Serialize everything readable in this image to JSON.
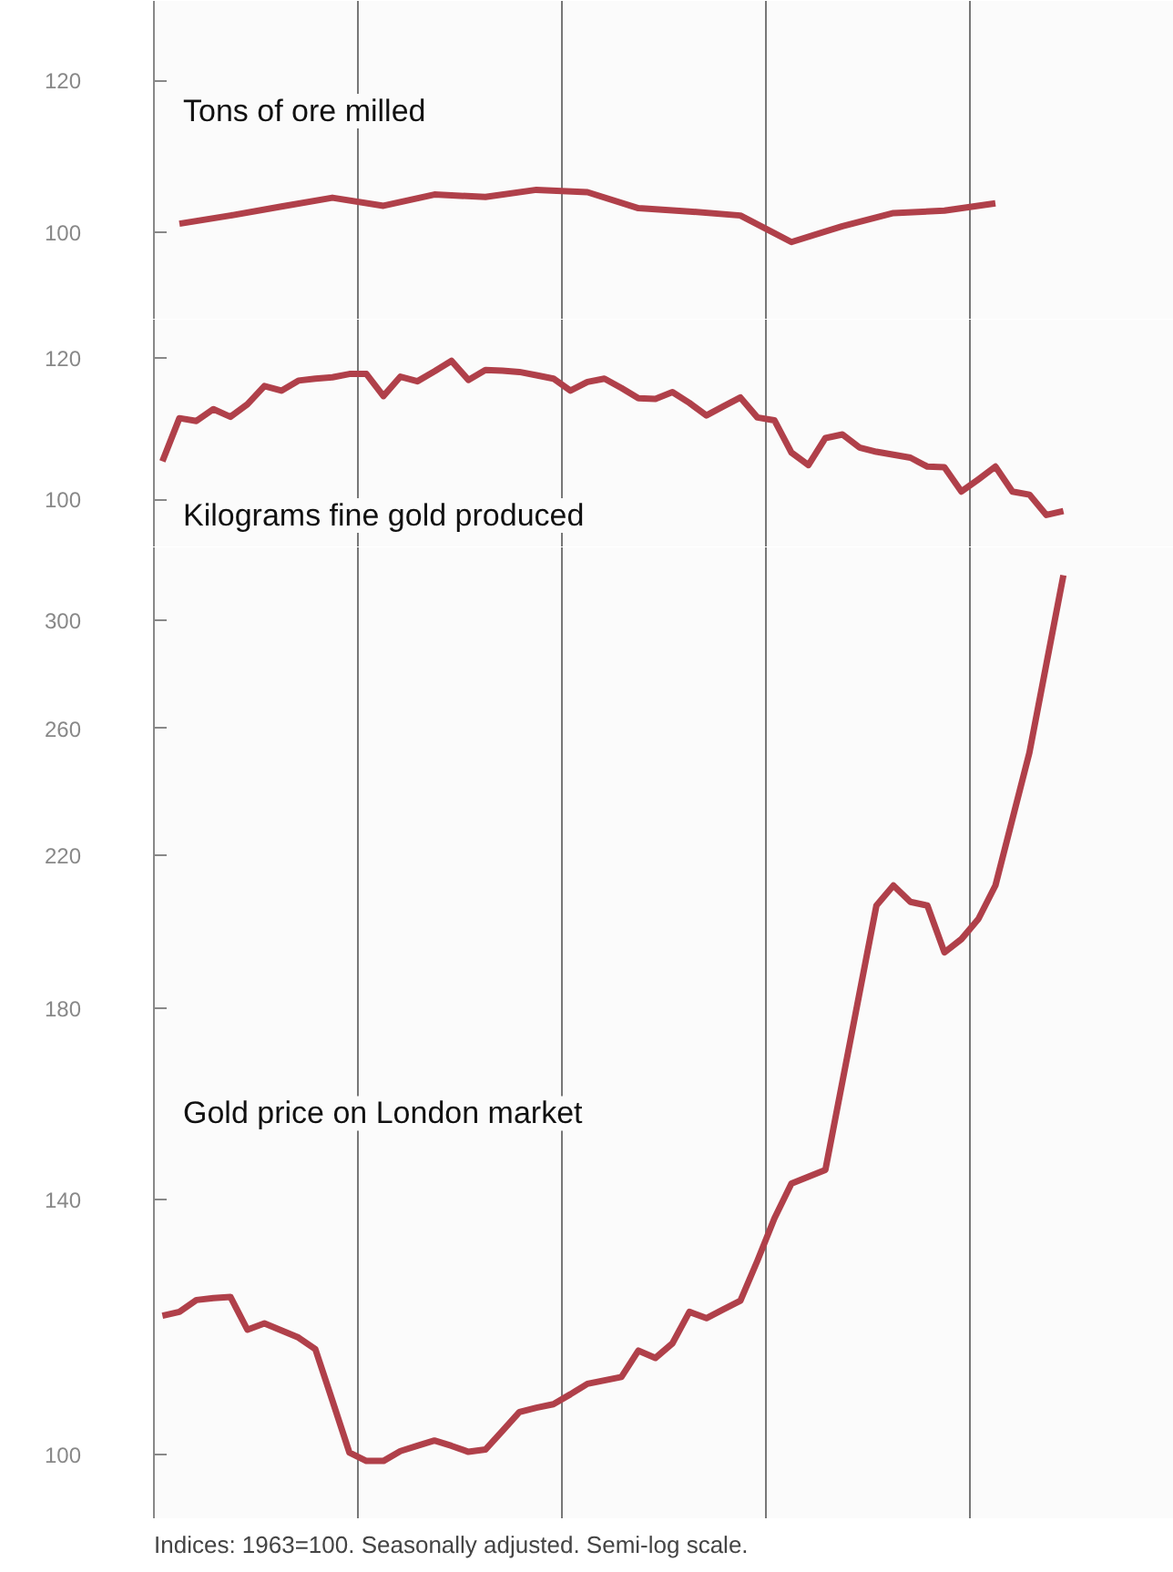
{
  "chart_data": [
    {
      "type": "line",
      "log": true,
      "grid": "x",
      "tick_labels": "y",
      "ylim": [
        90,
        132
      ],
      "yticks": [
        100,
        120
      ],
      "categories": [
        null,
        null,
        null,
        null,
        null,
        null,
        null,
        null,
        null,
        null,
        null,
        null,
        null,
        null,
        null,
        null,
        null,
        null,
        null,
        null
      ],
      "series": [
        {
          "name": "Tons of ore milled",
          "color": "#b0404a",
          "values": [
            101.0,
            102.0,
            103.1,
            104.2,
            103.2,
            104.6,
            104.3,
            105.2,
            104.9,
            102.9,
            102.5,
            102.0,
            98.8,
            100.7,
            102.3,
            102.6,
            103.5,
            null,
            null,
            null
          ]
        }
      ]
    },
    {
      "type": "line",
      "log": true,
      "grid": "x",
      "tick_labels": "y",
      "ylim": [
        94,
        126
      ],
      "yticks": [
        100,
        120
      ],
      "categories": [
        null,
        null,
        null,
        null,
        null,
        null,
        null,
        null,
        null,
        null,
        null,
        null,
        null,
        null,
        null,
        null,
        null,
        null,
        null,
        null,
        null,
        null,
        null,
        null,
        null,
        null,
        null,
        null,
        null,
        null,
        null,
        null,
        null,
        null,
        null,
        null,
        null,
        null,
        null,
        null,
        null,
        null,
        null,
        null,
        null,
        null,
        null,
        null,
        null,
        null,
        null,
        null,
        null,
        null,
        null,
        null,
        null,
        null,
        null,
        null
      ],
      "series": [
        {
          "name": "Kilograms fine gold produced",
          "color": "#b0404a",
          "values": [
            105.0,
            111.0,
            110.6,
            112.3,
            111.2,
            113.0,
            115.7,
            115.0,
            116.5,
            116.8,
            117.0,
            117.5,
            117.5,
            114.2,
            117.1,
            116.4,
            117.9,
            119.5,
            116.6,
            118.1,
            118.0,
            117.8,
            117.3,
            116.8,
            115.0,
            116.3,
            116.8,
            115.4,
            113.9,
            113.8,
            114.8,
            113.2,
            111.4,
            112.7,
            114.0,
            111.1,
            110.7,
            106.2,
            104.5,
            108.2,
            108.7,
            106.9,
            106.3,
            105.9,
            105.5,
            104.3,
            104.2,
            101.0,
            102.6,
            104.3,
            101.0,
            100.6,
            98.0,
            98.5,
            null,
            null,
            null,
            null,
            null,
            null
          ]
        }
      ]
    },
    {
      "type": "line",
      "log": true,
      "grid": "x",
      "tick_labels": "y",
      "ylim": [
        92,
        330
      ],
      "yticks": [
        100,
        140,
        180,
        220,
        260,
        300
      ],
      "annotations": [
        "Indices: 1963=100. Seasonally adjusted. Semi-log scale."
      ],
      "categories": [
        null,
        null,
        null,
        null,
        null,
        null,
        null,
        null,
        null,
        null,
        null,
        null,
        null,
        null,
        null,
        null,
        null,
        null,
        null,
        null,
        null,
        null,
        null,
        null,
        null,
        null,
        null,
        null,
        null,
        null,
        null,
        null,
        null,
        null,
        null,
        null,
        null,
        null,
        null,
        null,
        null,
        null,
        null,
        null,
        null,
        null,
        null,
        null,
        null,
        null,
        null,
        null,
        null,
        null,
        null,
        null,
        null,
        null,
        null,
        null
      ],
      "series": [
        {
          "name": "Gold price on London market",
          "color": "#b0404a",
          "values": [
            120.1,
            120.7,
            122.6,
            122.9,
            123.1,
            117.9,
            118.9,
            117.8,
            116.7,
            114.9,
            107.4,
            100.3,
            99.2,
            99.2,
            100.5,
            101.2,
            101.9,
            101.2,
            100.4,
            100.7,
            103.2,
            105.8,
            106.4,
            106.9,
            108.3,
            109.8,
            110.3,
            110.8,
            114.7,
            113.6,
            115.8,
            120.7,
            119.7,
            121.1,
            122.5,
            129.1,
            136.5,
            142.9,
            144.2,
            145.5,
            163.4,
            183.5,
            206.0,
            211.5,
            207.0,
            206.0,
            193.7,
            197.1,
            202.4,
            211.5,
            230.8,
            251.9,
            283.1,
            318.1,
            null,
            null,
            null,
            null,
            null,
            null
          ]
        }
      ]
    }
  ]
}
